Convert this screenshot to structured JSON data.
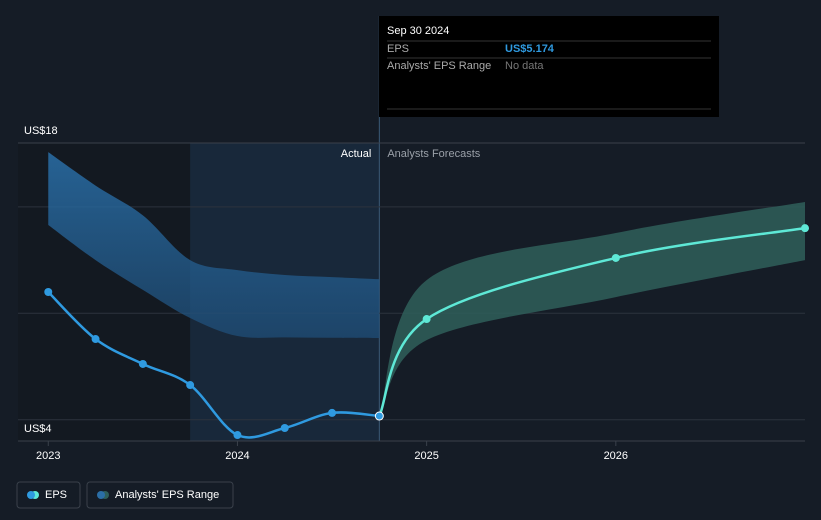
{
  "chart_data": {
    "type": "line",
    "xlim": [
      2022.84,
      2027
    ],
    "xticks": [
      2023,
      2024,
      2025,
      2026
    ],
    "ylim": [
      4,
      18
    ],
    "yticks": [
      {
        "value": 4,
        "label": "US$4"
      },
      {
        "value": 18,
        "label": "US$18"
      }
    ],
    "ygrid": [
      5,
      10,
      15
    ],
    "grid": true,
    "highlight": [
      2023.75,
      2024.75
    ],
    "actual_end": 2024.75,
    "region_labels": [
      "Actual",
      "Analysts Forecasts"
    ],
    "series": [
      {
        "name": "EPS",
        "color": "#2f9ae0",
        "forecast_color": "#5ee8d6",
        "x": [
          2023,
          2023.25,
          2023.5,
          2023.75,
          2024,
          2024.25,
          2024.5,
          2024.75,
          2025,
          2026,
          2027
        ],
        "values": [
          11.0,
          8.79,
          7.62,
          6.63,
          4.28,
          4.61,
          5.32,
          5.174,
          9.73,
          12.6,
          14.0
        ]
      }
    ],
    "ranges": [
      {
        "name": "Analysts' EPS Range",
        "color": "#2b6ea6",
        "x": [
          2023,
          2023.25,
          2023.5,
          2023.75,
          2024,
          2024.25,
          2024.5,
          2024.75
        ],
        "low": [
          14.15,
          12.5,
          11.1,
          9.78,
          8.93,
          8.87,
          8.85,
          8.84
        ],
        "high": [
          17.57,
          16.0,
          14.6,
          12.5,
          12.03,
          11.8,
          11.7,
          11.6
        ]
      },
      {
        "name": "Analysts' EPS Range",
        "color": "#2f5f5a",
        "x": [
          2024.75,
          2025,
          2026,
          2027
        ],
        "low": [
          5.174,
          8.74,
          10.76,
          12.5
        ],
        "high": [
          5.174,
          11.56,
          13.77,
          15.23
        ]
      }
    ],
    "tooltip": {
      "date": "Sep 30 2024",
      "rows": [
        [
          "EPS",
          "US$5.174"
        ],
        [
          "Analysts' EPS Range",
          "No data"
        ]
      ]
    }
  }
}
